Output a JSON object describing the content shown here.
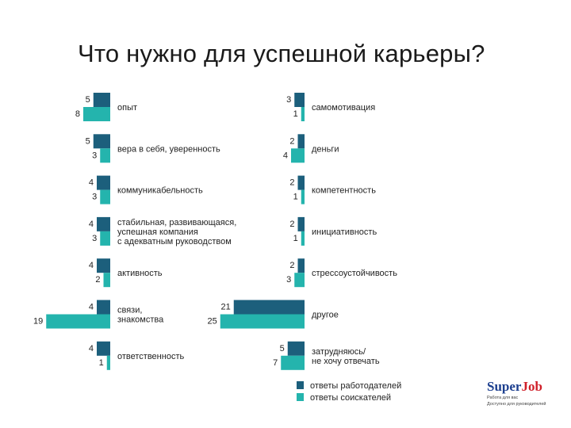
{
  "title": "Что нужно для успешной карьеры?",
  "colors": {
    "employers": "#1c5f7c",
    "seekers": "#24b4ad"
  },
  "legend": {
    "employers_label": "ответы работодателей",
    "seekers_label": "ответы соискателей"
  },
  "logo": {
    "super": "Super",
    "job": "Job",
    "tagline_1": "Работа для вас",
    "tagline_2": "Доступно для руководителей"
  },
  "chart_data": {
    "type": "bar",
    "orientation": "horizontal",
    "series": [
      {
        "name": "ответы работодателей",
        "color": "#1c5f7c"
      },
      {
        "name": "ответы соискателей",
        "color": "#24b4ad"
      }
    ],
    "panels": [
      {
        "categories": [
          {
            "lines": [
              "опыт"
            ],
            "employers": 5,
            "seekers": 8
          },
          {
            "lines": [
              "вера в себя, уверенность"
            ],
            "employers": 5,
            "seekers": 3
          },
          {
            "lines": [
              "коммуникабельность"
            ],
            "employers": 4,
            "seekers": 3
          },
          {
            "lines": [
              "стабильная, развивающаяся,",
              "успешная компания",
              "с адекватным руководством"
            ],
            "employers": 4,
            "seekers": 3
          },
          {
            "lines": [
              "активность"
            ],
            "employers": 4,
            "seekers": 2
          },
          {
            "lines": [
              "связи,",
              "знакомства"
            ],
            "employers": 4,
            "seekers": 19
          },
          {
            "lines": [
              "ответственность"
            ],
            "employers": 4,
            "seekers": 1
          }
        ]
      },
      {
        "categories": [
          {
            "lines": [
              "самомотивация"
            ],
            "employers": 3,
            "seekers": 1
          },
          {
            "lines": [
              "деньги"
            ],
            "employers": 2,
            "seekers": 4
          },
          {
            "lines": [
              "компетентность"
            ],
            "employers": 2,
            "seekers": 1
          },
          {
            "lines": [
              "инициативность"
            ],
            "employers": 2,
            "seekers": 1
          },
          {
            "lines": [
              "стрессоустойчивость"
            ],
            "employers": 2,
            "seekers": 3
          },
          {
            "lines": [
              "другое"
            ],
            "employers": 21,
            "seekers": 25
          },
          {
            "lines": [
              "затрудняюсь/",
              "не хочу отвечать"
            ],
            "employers": 5,
            "seekers": 7
          }
        ]
      }
    ],
    "legend_position": "bottom-right",
    "grid": false
  }
}
